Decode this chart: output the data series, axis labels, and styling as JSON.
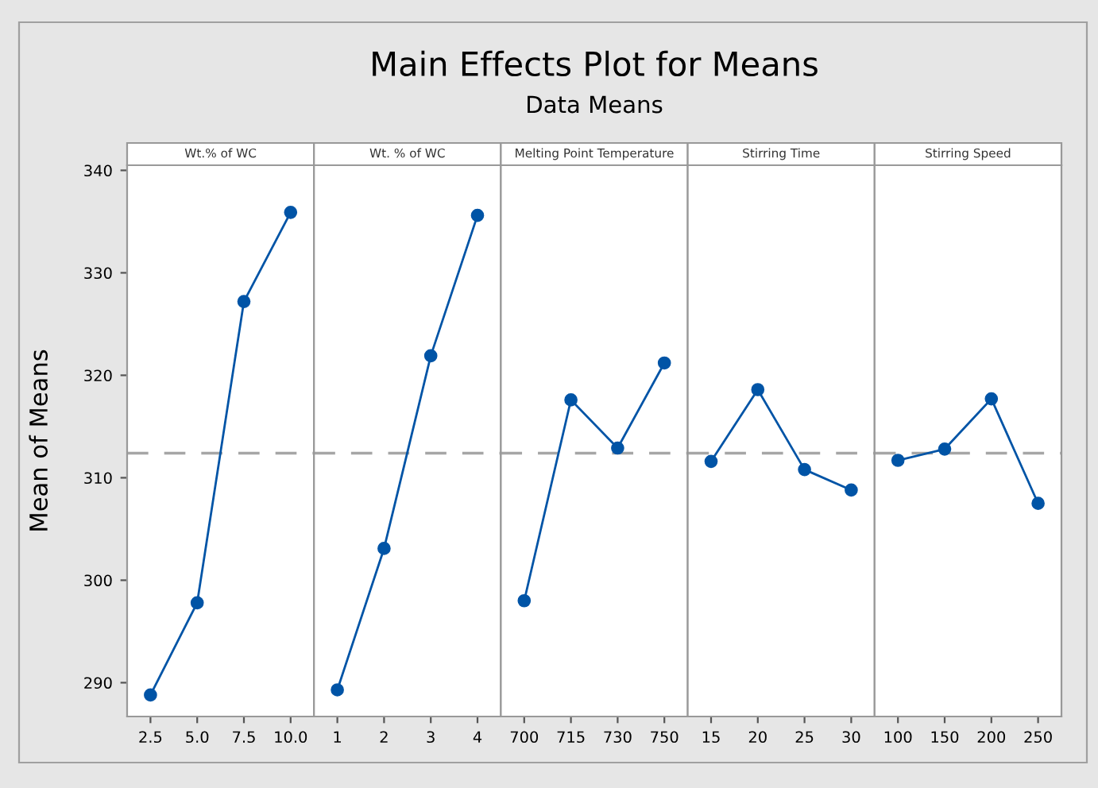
{
  "chart_data": [
    {
      "type": "line",
      "xlabel": "Wt.% of WC",
      "ylabel": "Mean of Means",
      "categories": [
        "2.5",
        "5.0",
        "7.5",
        "10.0"
      ],
      "series": [
        {
          "color": "#0054a6",
          "values": [
            288.8,
            297.8,
            327.2,
            335.9
          ]
        }
      ],
      "ylim": [
        286.7,
        340.5
      ],
      "yticks": [
        290,
        300,
        310,
        320,
        330,
        340
      ],
      "ref_lines": [
        {
          "axis": "y",
          "value": 312.4,
          "color": "#a6a6a6",
          "line_style": "dashed"
        }
      ],
      "marker": "circle",
      "line_style": "solid",
      "grid": false,
      "legend": false
    },
    {
      "type": "line",
      "xlabel": "Wt. % of WC",
      "categories": [
        "1",
        "2",
        "3",
        "4"
      ],
      "series": [
        {
          "color": "#0054a6",
          "values": [
            289.3,
            303.1,
            321.9,
            335.6
          ]
        }
      ],
      "ylim": [
        286.7,
        340.5
      ],
      "tick_labels": "x",
      "ref_lines": [
        {
          "axis": "y",
          "value": 312.4,
          "color": "#a6a6a6",
          "line_style": "dashed"
        }
      ],
      "marker": "circle",
      "line_style": "solid",
      "grid": false,
      "legend": false
    },
    {
      "type": "line",
      "title": "Main Effects Plot for Means",
      "subtitle": "Data Means",
      "xlabel": "Melting Point Temperature",
      "categories": [
        "700",
        "715",
        "730",
        "750"
      ],
      "series": [
        {
          "color": "#0054a6",
          "values": [
            298.0,
            317.6,
            312.9,
            321.2
          ]
        }
      ],
      "ylim": [
        286.7,
        340.5
      ],
      "tick_labels": "x",
      "ref_lines": [
        {
          "axis": "y",
          "value": 312.4,
          "color": "#a6a6a6",
          "line_style": "dashed"
        }
      ],
      "marker": "circle",
      "line_style": "solid",
      "grid": false,
      "legend": false
    },
    {
      "type": "line",
      "xlabel": "Stirring Time",
      "categories": [
        "15",
        "20",
        "25",
        "30"
      ],
      "series": [
        {
          "color": "#0054a6",
          "values": [
            311.6,
            318.6,
            310.8,
            308.8
          ]
        }
      ],
      "ylim": [
        286.7,
        340.5
      ],
      "tick_labels": "x",
      "ref_lines": [
        {
          "axis": "y",
          "value": 312.4,
          "color": "#a6a6a6",
          "line_style": "dashed"
        }
      ],
      "marker": "circle",
      "line_style": "solid",
      "grid": false,
      "legend": false
    },
    {
      "type": "line",
      "xlabel": "Stirring Speed",
      "categories": [
        "100",
        "150",
        "200",
        "250"
      ],
      "series": [
        {
          "color": "#0054a6",
          "values": [
            311.7,
            312.8,
            317.7,
            307.5
          ]
        }
      ],
      "ylim": [
        286.7,
        340.5
      ],
      "tick_labels": "x",
      "ref_lines": [
        {
          "axis": "y",
          "value": 312.4,
          "color": "#a6a6a6",
          "line_style": "dashed"
        }
      ],
      "marker": "circle",
      "line_style": "solid",
      "grid": false,
      "legend": false
    }
  ]
}
